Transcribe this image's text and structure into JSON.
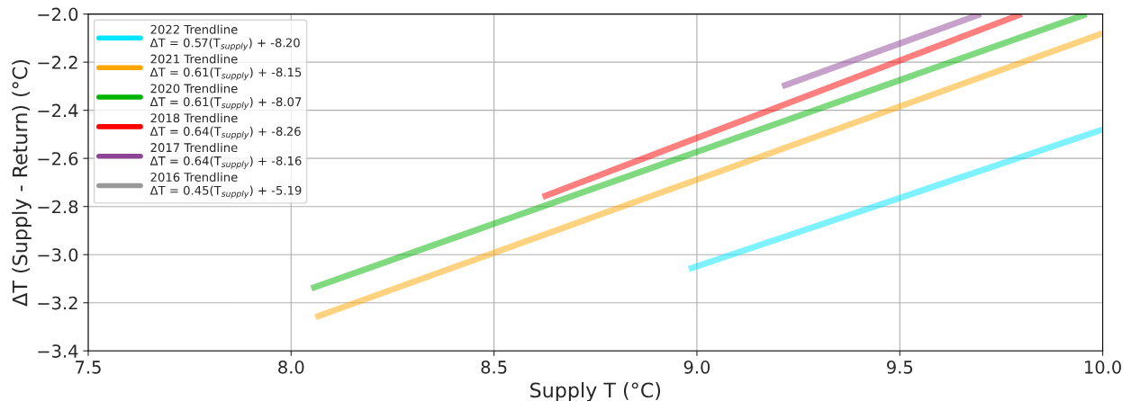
{
  "chart_data": {
    "type": "line",
    "xlabel": "Supply T (°C)",
    "ylabel": "ΔT (Supply - Return) (°C)",
    "xlim": [
      7.5,
      10.0
    ],
    "xticks": [
      7.5,
      {
        "value": 8.0,
        "label": "8.0"
      },
      8.5,
      {
        "value": 9.0,
        "label": "9.0"
      },
      9.5,
      {
        "value": 10.0,
        "label": "10.0"
      }
    ],
    "ylim": [
      -3.4,
      -2.0
    ],
    "yticks": [
      {
        "value": -3.4,
        "label": "−3.4"
      },
      {
        "value": -3.2,
        "label": "−3.2"
      },
      {
        "value": -3.0,
        "label": "−3.0"
      },
      {
        "value": -2.8,
        "label": "−2.8"
      },
      {
        "value": -2.6,
        "label": "−2.6"
      },
      {
        "value": -2.4,
        "label": "−2.4"
      },
      {
        "value": -2.2,
        "label": "−2.2"
      },
      {
        "value": -2.0,
        "label": "−2.0"
      }
    ],
    "grid": true,
    "legend": "top left",
    "marker": "none",
    "line_style": "solid",
    "series": [
      {
        "name": "2022 Trendline\nΔT = 0.57(T$_{supply}$) + -8.20",
        "color": "#00e5ff",
        "x": [
          8.98,
          10.0
        ],
        "values": [
          -3.06,
          -2.48
        ]
      },
      {
        "name": "2021 Trendline\nΔT = 0.61(T$_{supply}$) + -8.15",
        "color": "#ffa500",
        "x": [
          8.06,
          10.0
        ],
        "values": [
          -3.26,
          -2.08
        ]
      },
      {
        "name": "2020 Trendline\nΔT = 0.61(T$_{supply}$) + -8.07",
        "color": "#00b400",
        "x": [
          8.05,
          9.96
        ],
        "values": [
          -3.14,
          -2.0
        ]
      },
      {
        "name": "2018 Trendline\nΔT = 0.64(T$_{supply}$) + -8.26",
        "color": "#ff0000",
        "x": [
          8.62,
          9.8
        ],
        "values": [
          -2.76,
          -2.0
        ]
      },
      {
        "name": "2017 Trendline\nΔT = 0.64(T$_{supply}$) + -8.16",
        "color": "#8e4494",
        "x": [
          9.21,
          9.7
        ],
        "values": [
          -2.3,
          -2.0
        ]
      },
      {
        "name": "2016 Trendline\nΔT = 0.45(T$_{supply}$) + -5.19",
        "color": "#999999"
      }
    ]
  }
}
